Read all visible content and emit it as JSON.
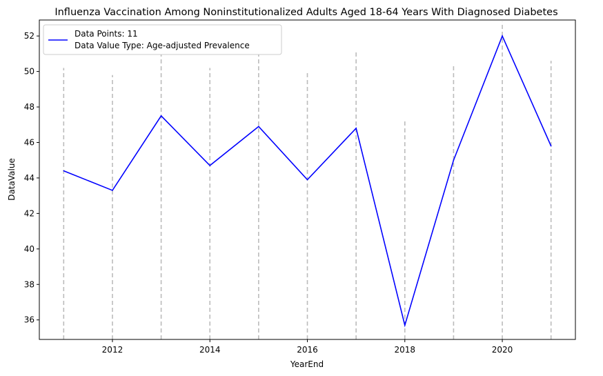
{
  "chart_data": {
    "type": "line",
    "title": "Influenza Vaccination Among Noninstitutionalized Adults Aged 18-64 Years With Diagnosed Diabetes",
    "xlabel": "YearEnd",
    "ylabel": "DataValue",
    "x": [
      2011,
      2012,
      2013,
      2014,
      2015,
      2016,
      2017,
      2018,
      2019,
      2020,
      2021
    ],
    "series": [
      {
        "values": [
          44.4,
          43.3,
          47.5,
          44.7,
          46.9,
          43.9,
          46.8,
          35.7,
          45.0,
          52.0,
          45.8
        ],
        "color": "#0000ff"
      }
    ],
    "error_bar_upper": [
      50.2,
      49.8,
      51.3,
      50.2,
      51.2,
      50.0,
      51.1,
      47.2,
      50.4,
      52.8,
      50.6
    ],
    "error_bar_color": "#bbbbbb",
    "xticks": [
      "2012",
      "2014",
      "2016",
      "2018",
      "2020"
    ],
    "yticks": [
      "36",
      "38",
      "40",
      "42",
      "44",
      "46",
      "48",
      "50",
      "52"
    ],
    "xlim": [
      2010.5,
      2021.5
    ],
    "ylim": [
      34.9,
      52.9
    ],
    "grid": false,
    "legend": {
      "placement": "upper-left",
      "lines": [
        "Data Points: 11",
        "Data Value Type: Age-adjusted Prevalence"
      ]
    }
  }
}
